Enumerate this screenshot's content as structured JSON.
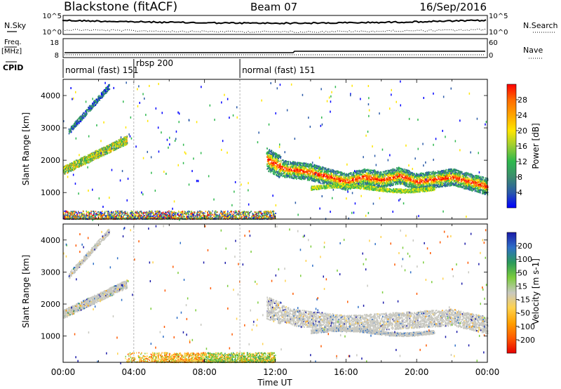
{
  "header": {
    "station": "Blackstone (fitACF)",
    "beam": "Beam 07",
    "date": "16/Sep/2016"
  },
  "strips": {
    "nsky_label": "N.Sky",
    "nsearch_label": "N.Search",
    "noise_ticks_left": [
      "10^5",
      "10^0"
    ],
    "noise_ticks_right": [
      "10^5",
      "10^0"
    ],
    "freq_label": "Freq.",
    "freq_unit": "[MHz]",
    "freq_ticks": [
      "18",
      "8"
    ],
    "nave_label": "Nave",
    "nave_ticks": [
      "60",
      "0"
    ],
    "cpid_label": "CPID",
    "cpid_segments": [
      {
        "start": 0.0,
        "end": 4.0,
        "label": "normal (fast) 151"
      },
      {
        "start": 4.0,
        "end": 10.0,
        "label": "rbsp 200"
      },
      {
        "start": 10.0,
        "end": 24.0,
        "label": "normal (fast) 151"
      }
    ]
  },
  "chart_data": [
    {
      "type": "heatmap",
      "name": "power",
      "ylabel": "Slant Range [km]",
      "xlabel": "Time UT",
      "xlim": [
        0,
        24
      ],
      "ylim": [
        180,
        4500
      ],
      "xticks": [
        "00:00",
        "04:00",
        "08:00",
        "12:00",
        "16:00",
        "20:00",
        "00:00"
      ],
      "yticks": [
        1000,
        2000,
        3000,
        4000
      ],
      "colorbar": {
        "label": "Power [dB]",
        "ticks": [
          "28",
          "24",
          "20",
          "16",
          "12",
          "8",
          "4"
        ],
        "colors": [
          "#ff0000",
          "#ff6a00",
          "#ffa500",
          "#ffe600",
          "#9acd32",
          "#2db84d",
          "#3c8c6e",
          "#2a5aa8",
          "#0000ff"
        ]
      },
      "features": [
        {
          "feature": "oblique_band_a",
          "t_start": 0.0,
          "t_end": 3.6,
          "range_start": 1700,
          "range_end": 2650,
          "dominant": "mid"
        },
        {
          "feature": "oblique_band_b",
          "t_start": 0.3,
          "t_end": 2.6,
          "range_start": 2900,
          "range_end": 4300,
          "dominant": "low"
        },
        {
          "feature": "ground_scatter_strip",
          "t_start": 0.0,
          "t_end": 12.0,
          "range_start": 200,
          "range_end": 450,
          "dominant": "mixed"
        },
        {
          "feature": "main_band",
          "t_start": 11.5,
          "t_end": 24.0,
          "range_center_by_hour": [
            [
              11.5,
              2050
            ],
            [
              12.5,
              1750
            ],
            [
              14,
              1650
            ],
            [
              16,
              1350
            ],
            [
              17,
              1500
            ],
            [
              18,
              1400
            ],
            [
              19,
              1550
            ],
            [
              20,
              1350
            ],
            [
              22,
              1500
            ],
            [
              24,
              1200
            ]
          ],
          "dominant": "high"
        }
      ]
    },
    {
      "type": "heatmap",
      "name": "velocity",
      "ylabel": "Slant Range [km]",
      "xlabel": "Time UT",
      "xlim": [
        0,
        24
      ],
      "ylim": [
        180,
        4500
      ],
      "xticks": [
        "00:00",
        "04:00",
        "08:00",
        "12:00",
        "16:00",
        "20:00",
        "00:00"
      ],
      "yticks": [
        1000,
        2000,
        3000,
        4000
      ],
      "colorbar": {
        "label": "Velocity [m s-1]",
        "ticks": [
          "200",
          "100",
          "50",
          "15",
          "-15",
          "-50",
          "-100",
          "-200"
        ],
        "colors": [
          "#1a1aa8",
          "#2e6fc7",
          "#2a9a5a",
          "#7ccd3c",
          "#c8c8c0",
          "#ffd24d",
          "#ffa000",
          "#ff5a00",
          "#e60000"
        ]
      },
      "features": [
        {
          "feature": "oblique_band_a",
          "t_start": 0.0,
          "t_end": 3.6,
          "range_start": 1700,
          "range_end": 2650,
          "dominant": "ground_scatter_grey"
        },
        {
          "feature": "oblique_band_b",
          "t_start": 0.3,
          "t_end": 2.6,
          "range_start": 2900,
          "range_end": 4300,
          "dominant": "ground_scatter_grey"
        },
        {
          "feature": "ground_scatter_strip",
          "t_start": 3.5,
          "t_end": 12.0,
          "range_start": 200,
          "range_end": 500,
          "dominant": "orange_green"
        },
        {
          "feature": "main_band",
          "t_start": 11.5,
          "t_end": 24.0,
          "range_center_by_hour": [
            [
              11.5,
              1900
            ],
            [
              13,
              1600
            ],
            [
              16,
              1400
            ],
            [
              19,
              1500
            ],
            [
              22,
              1600
            ],
            [
              24,
              1350
            ]
          ],
          "dominant": "ground_scatter_grey"
        }
      ]
    }
  ]
}
